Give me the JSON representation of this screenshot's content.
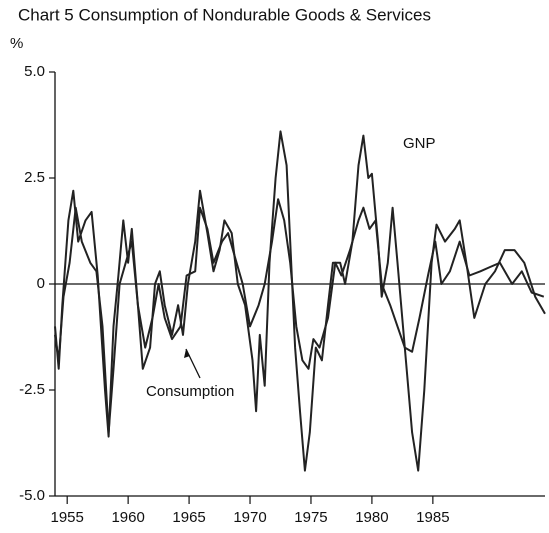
{
  "chart_data": {
    "type": "line",
    "title": "Chart 5  Consumption of Nondurable Goods & Services",
    "y_label": "%",
    "xlim": [
      1954.0,
      1994.2
    ],
    "xticks": [
      1955,
      1960,
      1965,
      1970,
      1975,
      1980,
      1985
    ],
    "ylim": [
      -5,
      5
    ],
    "yticks": [
      {
        "value": 5,
        "label": "5.0"
      },
      2.5,
      0,
      -2.5,
      {
        "value": -5,
        "label": "-5.0"
      }
    ],
    "annotations": [
      "GNP",
      "Consumption"
    ],
    "series": [
      {
        "name": "GNP",
        "color": "#222222",
        "x": [
          1954.0,
          1954.3,
          1954.6,
          1955.1,
          1955.5,
          1955.9,
          1956.5,
          1957.0,
          1957.5,
          1958.1,
          1958.4,
          1958.8,
          1959.2,
          1959.6,
          1960.0,
          1960.3,
          1960.8,
          1961.2,
          1961.8,
          1962.2,
          1962.6,
          1963.0,
          1963.6,
          1964.1,
          1964.5,
          1964.9,
          1965.5,
          1965.9,
          1966.5,
          1967.0,
          1967.5,
          1967.9,
          1968.5,
          1969.0,
          1969.6,
          1970.2,
          1970.5,
          1970.8,
          1971.2,
          1971.6,
          1972.1,
          1972.5,
          1973.0,
          1973.3,
          1973.7,
          1974.1,
          1974.5,
          1974.9,
          1975.4,
          1975.9,
          1976.4,
          1976.8,
          1977.4,
          1977.8,
          1978.4,
          1978.9,
          1979.3,
          1979.7,
          1980.0,
          1980.5,
          1980.8,
          1981.3,
          1981.7,
          1982.1,
          1982.7,
          1983.3,
          1983.8,
          1984.3,
          1984.9,
          1985.3,
          1986.0,
          1986.8,
          1987.2,
          1987.8,
          1988.4,
          1989.3,
          1990.1,
          1990.9,
          1991.7,
          1992.5,
          1993.4,
          1994.2
        ],
        "values": [
          -1.0,
          -2.0,
          -0.5,
          1.5,
          2.2,
          1.0,
          1.5,
          1.7,
          0.2,
          -2.5,
          -3.6,
          -1.0,
          0.2,
          1.5,
          0.5,
          1.3,
          -0.5,
          -2.0,
          -1.5,
          0,
          0.3,
          -0.5,
          -1.2,
          -0.5,
          -1.2,
          0,
          1.0,
          2.2,
          1.2,
          0.3,
          0.8,
          1.5,
          1.2,
          0,
          -0.5,
          -1.8,
          -3.0,
          -1.2,
          -2.4,
          0.5,
          2.5,
          3.6,
          2.8,
          1.0,
          -1.5,
          -3.0,
          -4.4,
          -3.5,
          -1.5,
          -1.8,
          -0.5,
          0.5,
          0.5,
          0,
          1.0,
          2.8,
          3.5,
          2.5,
          2.6,
          1.0,
          -0.3,
          0.5,
          1.8,
          0.5,
          -1.5,
          -3.5,
          -4.4,
          -2.5,
          0.5,
          1.4,
          1.0,
          1.3,
          1.5,
          0.4,
          -0.8,
          0,
          0.3,
          0.8,
          0.8,
          0.5,
          -0.3,
          -0.7
        ]
      },
      {
        "name": "Consumption",
        "color": "#222222",
        "x": [
          1954.0,
          1954.3,
          1954.7,
          1955.2,
          1955.7,
          1956.2,
          1956.9,
          1957.4,
          1957.9,
          1958.4,
          1958.8,
          1959.3,
          1959.8,
          1960.3,
          1960.8,
          1961.4,
          1962.0,
          1962.5,
          1963.0,
          1963.6,
          1964.3,
          1964.8,
          1965.5,
          1965.9,
          1966.5,
          1967.0,
          1967.7,
          1968.2,
          1968.8,
          1969.4,
          1970.0,
          1970.7,
          1971.2,
          1971.8,
          1972.3,
          1972.8,
          1973.3,
          1973.8,
          1974.3,
          1974.8,
          1975.2,
          1975.7,
          1976.4,
          1977.0,
          1977.5,
          1978.2,
          1978.9,
          1979.3,
          1979.8,
          1980.3,
          1980.8,
          1981.5,
          1982.1,
          1982.7,
          1983.3,
          1983.9,
          1984.6,
          1985.2,
          1985.7,
          1986.4,
          1987.2,
          1988.0,
          1988.9,
          1989.7,
          1990.5,
          1991.5,
          1992.3,
          1993.1,
          1994.1
        ],
        "values": [
          -1.2,
          -1.8,
          -0.3,
          0.5,
          1.8,
          1.0,
          0.5,
          0.3,
          -1.0,
          -3.5,
          -2.0,
          0,
          0.5,
          1.0,
          -0.5,
          -1.5,
          -0.8,
          0,
          -0.8,
          -1.3,
          -1.0,
          0.2,
          0.3,
          1.8,
          1.3,
          0.5,
          1.0,
          1.2,
          0.6,
          0,
          -1.0,
          -0.5,
          0,
          1.0,
          2.0,
          1.5,
          0.5,
          -1.0,
          -1.8,
          -2.0,
          -1.3,
          -1.5,
          -0.8,
          0.5,
          0.2,
          0.8,
          1.5,
          1.8,
          1.3,
          1.5,
          0,
          -0.5,
          -1.0,
          -1.5,
          -1.6,
          -0.8,
          0.2,
          1.0,
          0,
          0.3,
          1.0,
          0.2,
          0.3,
          0.4,
          0.5,
          0,
          0.3,
          -0.2,
          -0.3
        ]
      }
    ]
  }
}
